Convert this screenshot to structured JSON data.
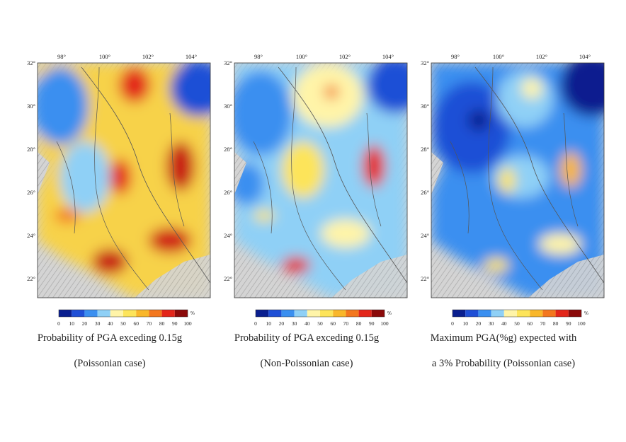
{
  "lon_labels": [
    "98°",
    "100°",
    "102°",
    "104°"
  ],
  "lat_labels": [
    "32°",
    "30°",
    "28°",
    "26°",
    "24°",
    "22°"
  ],
  "legend": {
    "ticks": [
      "0",
      "10",
      "20",
      "30",
      "40",
      "50",
      "60",
      "70",
      "80",
      "90",
      "100"
    ],
    "unit": "%",
    "colors": [
      "#0a1f8f",
      "#1f4fd6",
      "#3a8ff0",
      "#8fd0f6",
      "#fff4a8",
      "#fde45a",
      "#f9b72a",
      "#f3771e",
      "#e3261a",
      "#8b0a0a"
    ]
  },
  "panels": [
    {
      "caption_line1": "Probability of PGA exceding 0.15g",
      "caption_line2": "(Poissonian case)"
    },
    {
      "caption_line1": "Probability of PGA exceding 0.15g",
      "caption_line2": "(Non-Poissonian case)"
    },
    {
      "caption_line1": "Maximum PGA(%g) expected with",
      "caption_line2": "a 3% Probability (Poissonian case)"
    }
  ]
}
